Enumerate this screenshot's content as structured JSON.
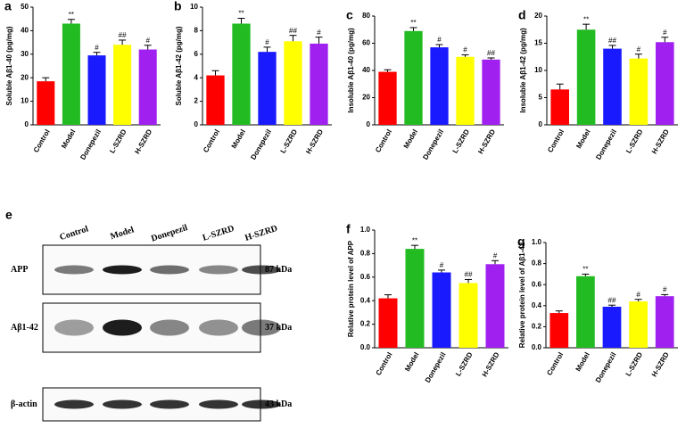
{
  "chart_data": [
    {
      "type": "bar",
      "panel": "a",
      "y_label": "Soluble Aβ1-40 (pg/mg)",
      "categories": [
        "Control",
        "Model",
        "Donepezil",
        "L-SZRD",
        "H-SZRD"
      ],
      "values": [
        18.5,
        43,
        29.5,
        34,
        32
      ],
      "errors": [
        1.5,
        1.8,
        1.3,
        2,
        1.8
      ],
      "annotations": [
        null,
        "**",
        "#",
        "##",
        "#"
      ],
      "colors": [
        "#ff0000",
        "#22bb22",
        "#1a1aff",
        "#ffff00",
        "#a020f0"
      ],
      "ylim": [
        0,
        50
      ],
      "yticks": [
        0,
        10,
        20,
        30,
        40,
        50
      ]
    },
    {
      "type": "bar",
      "panel": "b",
      "y_label": "Soluble Aβ1-42 (pg/mg)",
      "categories": [
        "Control",
        "Model",
        "Donepezil",
        "L-SZRD",
        "H-SZRD"
      ],
      "values": [
        4.2,
        8.6,
        6.2,
        7.1,
        6.9
      ],
      "errors": [
        0.4,
        0.45,
        0.4,
        0.5,
        0.55
      ],
      "annotations": [
        null,
        "**",
        "#",
        "##",
        "#"
      ],
      "colors": [
        "#ff0000",
        "#22bb22",
        "#1a1aff",
        "#ffff00",
        "#a020f0"
      ],
      "ylim": [
        0,
        10
      ],
      "yticks": [
        0,
        2,
        4,
        6,
        8,
        10
      ]
    },
    {
      "type": "bar",
      "panel": "c",
      "y_label": "Insoluble Aβ1-40 (pg/mg)",
      "categories": [
        "Control",
        "Model",
        "Donepezil",
        "L-SZRD",
        "H-SZRD"
      ],
      "values": [
        39,
        69,
        57,
        50,
        48
      ],
      "errors": [
        1.5,
        2.5,
        2,
        1.5,
        1.2
      ],
      "annotations": [
        null,
        "**",
        "#",
        "#",
        "##"
      ],
      "colors": [
        "#ff0000",
        "#22bb22",
        "#1a1aff",
        "#ffff00",
        "#a020f0"
      ],
      "ylim": [
        0,
        80
      ],
      "yticks": [
        0,
        20,
        40,
        60,
        80
      ]
    },
    {
      "type": "bar",
      "panel": "d",
      "y_label": "Insoluble Aβ1-42 (pg/mg)",
      "categories": [
        "Control",
        "Model",
        "Donepezil",
        "L-SZRD",
        "H-SZRD"
      ],
      "values": [
        6.5,
        17.5,
        14,
        12.2,
        15.2
      ],
      "errors": [
        1,
        1,
        0.6,
        0.8,
        0.9
      ],
      "annotations": [
        null,
        "**",
        "##",
        "#",
        "#"
      ],
      "colors": [
        "#ff0000",
        "#22bb22",
        "#1a1aff",
        "#ffff00",
        "#a020f0"
      ],
      "ylim": [
        0,
        20
      ],
      "yticks": [
        0,
        5,
        10,
        15,
        20
      ]
    },
    {
      "type": "bar",
      "panel": "f",
      "y_label": "Relative protein level of APP",
      "categories": [
        "Control",
        "Model",
        "Donepezil",
        "L-SZRD",
        "H-SZRD"
      ],
      "values": [
        0.42,
        0.84,
        0.64,
        0.55,
        0.71
      ],
      "errors": [
        0.03,
        0.03,
        0.02,
        0.03,
        0.03
      ],
      "annotations": [
        null,
        "**",
        "#",
        "##",
        "#"
      ],
      "colors": [
        "#ff0000",
        "#22bb22",
        "#1a1aff",
        "#ffff00",
        "#a020f0"
      ],
      "ylim": [
        0,
        1
      ],
      "yticks": [
        {
          "value": 0,
          "label": "0.0"
        },
        0.2,
        0.4,
        0.6,
        0.8,
        {
          "value": 1,
          "label": "1.0"
        }
      ]
    },
    {
      "type": "bar",
      "panel": "g",
      "y_label": "Relative protein level of Aβ1-42",
      "categories": [
        "Control",
        "Model",
        "Donepezil",
        "L-SZRD",
        "H-SZRD"
      ],
      "values": [
        0.33,
        0.68,
        0.39,
        0.44,
        0.49
      ],
      "errors": [
        0.02,
        0.02,
        0.015,
        0.02,
        0.015
      ],
      "annotations": [
        null,
        "**",
        "##",
        "#",
        "#"
      ],
      "colors": [
        "#ff0000",
        "#22bb22",
        "#1a1aff",
        "#ffff00",
        "#a020f0"
      ],
      "ylim": [
        0,
        1
      ],
      "yticks": [
        {
          "value": 0,
          "label": "0.0"
        },
        0.2,
        0.4,
        0.6,
        0.8,
        {
          "value": 1,
          "label": "1.0"
        }
      ]
    }
  ],
  "blot": {
    "panel": "e",
    "lanes": [
      "Control",
      "Model",
      "Donepezil",
      "L-SZRD",
      "H-SZRD"
    ],
    "rows": [
      {
        "name": "APP",
        "size": "87 kDa"
      },
      {
        "name": "Aβ1-42",
        "size": "37 kDa"
      },
      {
        "name": "β-actin",
        "size": "43 kDa"
      }
    ]
  }
}
